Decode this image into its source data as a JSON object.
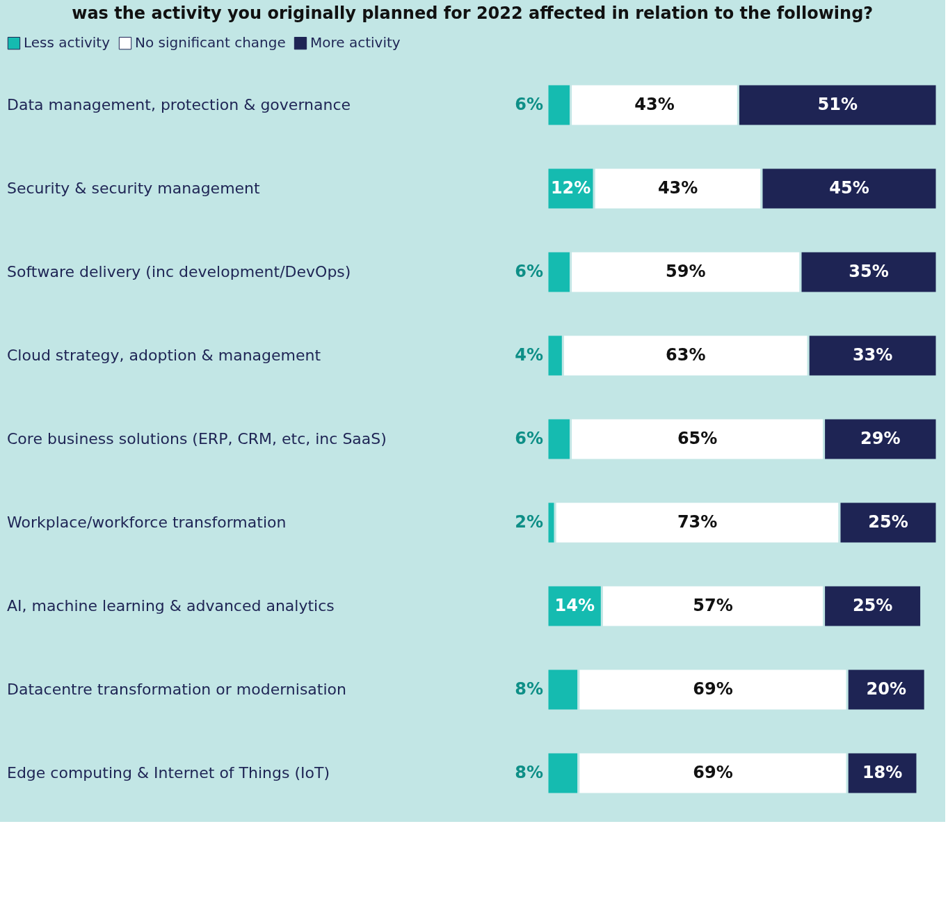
{
  "chart_data": {
    "type": "bar",
    "orientation": "horizontal",
    "stacked": true,
    "title": "was the activity you originally planned for 2022 affected in relation to the following?",
    "categories": [
      "Data management, protection & governance",
      "Security & security management",
      "Software delivery (inc development/DevOps)",
      "Cloud strategy, adoption & management",
      "Core business solutions (ERP, CRM, etc, inc SaaS)",
      "Workplace/workforce transformation",
      "AI, machine learning & advanced analytics",
      "Datacentre transformation or modernisation",
      "Edge computing & Internet of Things (IoT)"
    ],
    "series": [
      {
        "name": "Less activity",
        "color": "#15bbb0",
        "values": [
          6,
          12,
          6,
          4,
          6,
          2,
          14,
          8,
          8
        ],
        "value_labels": [
          "6%",
          "12%",
          "6%",
          "4%",
          "6%",
          "2%",
          "14%",
          "8%",
          "8%"
        ]
      },
      {
        "name": "No significant change",
        "color": "#ffffff",
        "values": [
          43,
          43,
          59,
          63,
          65,
          73,
          57,
          69,
          69
        ],
        "value_labels": [
          "43%",
          "43%",
          "59%",
          "63%",
          "65%",
          "73%",
          "57%",
          "69%",
          "69%"
        ]
      },
      {
        "name": "More activity",
        "color": "#1e2454",
        "values": [
          51,
          45,
          35,
          33,
          29,
          25,
          25,
          20,
          18
        ],
        "value_labels": [
          "51%",
          "45%",
          "35%",
          "33%",
          "29%",
          "25%",
          "25%",
          "20%",
          "18%"
        ]
      }
    ],
    "legend": "top"
  }
}
